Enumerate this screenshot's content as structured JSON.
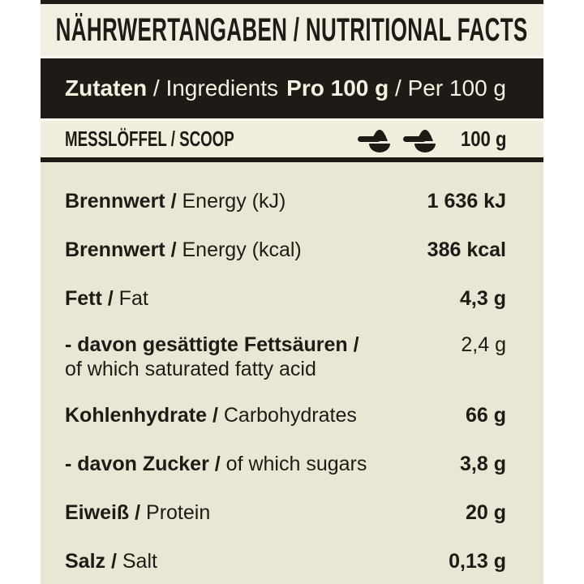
{
  "title": "NÄHRWERTANGABEN / NUTRITIONAL FACTS",
  "separator": " / ",
  "header": {
    "left_bold": "Zutaten",
    "left_regular": "Ingredients",
    "right_bold": "Pro 100 g",
    "right_regular": "Per 100 g",
    "separator": " / "
  },
  "scoop_row": {
    "label": "MESSLÖFFEL / SCOOP",
    "icons": [
      "scoop-icon",
      "scoop-icon"
    ],
    "amount": "100 g"
  },
  "rows": [
    {
      "de": "Brennwert",
      "en": "Energy (kJ)",
      "value": "1 636 kJ",
      "value_bold": true,
      "two_line": false
    },
    {
      "de": "Brennwert",
      "en": "Energy (kcal)",
      "value": "386 kcal",
      "value_bold": true,
      "two_line": false
    },
    {
      "de": "Fett",
      "en": "Fat",
      "value": "4,3 g",
      "value_bold": true,
      "two_line": false
    },
    {
      "de": "- davon gesättigte Fettsäuren",
      "en": "of which saturated fatty acid",
      "value": "2,4 g",
      "value_bold": false,
      "two_line": true
    },
    {
      "de": "Kohlenhydrate",
      "en": "Carbohydrates",
      "value": "66 g",
      "value_bold": true,
      "two_line": false
    },
    {
      "de": "- davon Zucker",
      "en": "of which sugars",
      "value": "3,8 g",
      "value_bold": true,
      "two_line": false
    },
    {
      "de": "Eiweiß",
      "en": "Protein",
      "value": "20 g",
      "value_bold": true,
      "two_line": false
    },
    {
      "de": "Salz",
      "en": "Salt",
      "value": "0,13 g",
      "value_bold": true,
      "two_line": false
    }
  ],
  "colors": {
    "page-bg": "#ffffff",
    "rows-bg": "#e9e7d4",
    "band-bg": "#f1efe1",
    "band-bg2": "#f0eedd",
    "ink": "#1e1b17",
    "band-text": "#f4f1e1",
    "gap-line": "#fcfaf0"
  }
}
